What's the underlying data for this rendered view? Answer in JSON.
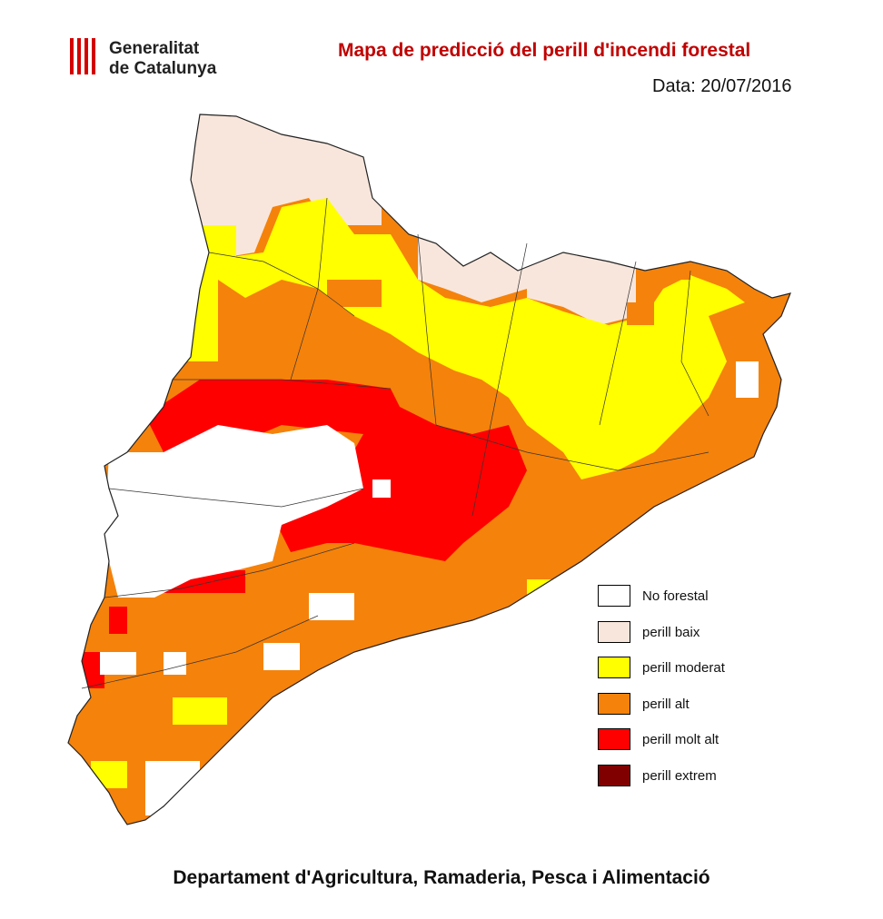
{
  "header": {
    "logo_line1": "Generalitat",
    "logo_line2": "de Catalunya",
    "title": "Mapa de predicció del perill d'incendi forestal",
    "date": "Data: 20/07/2016"
  },
  "colors": {
    "title": "#c00000",
    "no_forestal": "#ffffff",
    "perill_baix": "#f8e6dc",
    "perill_moderat": "#ffff00",
    "perill_alt": "#f5820a",
    "perill_molt_alt": "#ff0000",
    "perill_extrem": "#800000",
    "logo_stripes": "#d40000"
  },
  "legend": [
    {
      "key": "no_forestal",
      "label": "No forestal",
      "color": "#ffffff"
    },
    {
      "key": "perill_baix",
      "label": "perill baix",
      "color": "#f8e6dc"
    },
    {
      "key": "perill_moderat",
      "label": "perill moderat",
      "color": "#ffff00"
    },
    {
      "key": "perill_alt",
      "label": "perill alt",
      "color": "#f5820a"
    },
    {
      "key": "perill_molt_alt",
      "label": "perill molt alt",
      "color": "#ff0000"
    },
    {
      "key": "perill_extrem",
      "label": "perill extrem",
      "color": "#800000"
    }
  ],
  "footer": "Departament d'Agricultura, Ramaderia, Pesca i Alimentació"
}
